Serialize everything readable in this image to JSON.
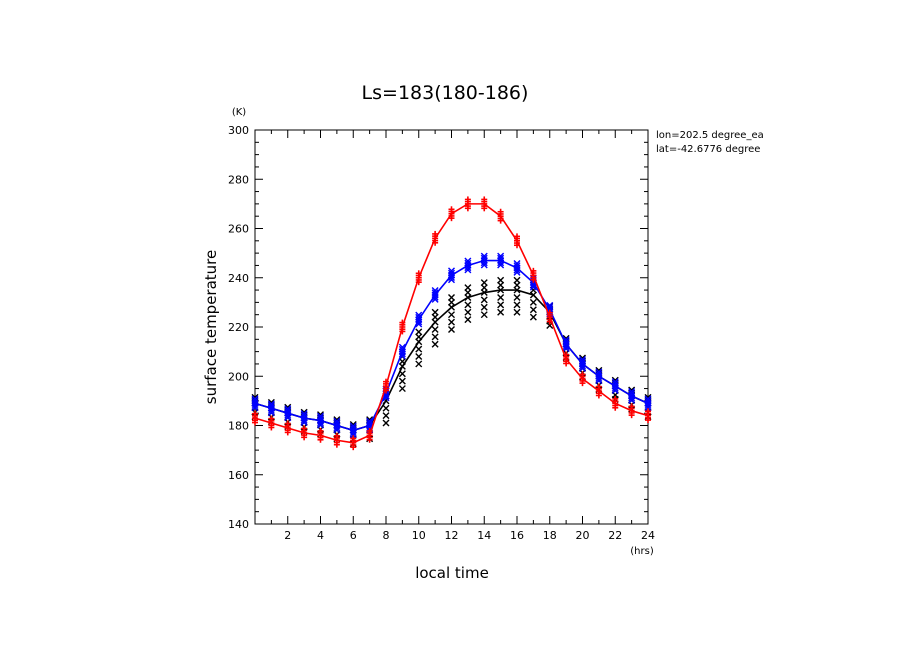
{
  "chart_data": {
    "type": "line",
    "title": "Ls=183(180-186)",
    "xlabel": "local time",
    "ylabel": "surface temperature",
    "x_unit": "(hrs)",
    "y_unit": "(K)",
    "xlim": [
      0,
      24
    ],
    "ylim": [
      140,
      300
    ],
    "x_ticks": [
      2,
      4,
      6,
      8,
      10,
      12,
      14,
      16,
      18,
      20,
      22,
      24
    ],
    "y_ticks": [
      140,
      160,
      180,
      200,
      220,
      240,
      260,
      280,
      300
    ],
    "grid": false,
    "annotations": [
      "lon=202.5 degree_ea",
      "lat=-42.6776 degree"
    ],
    "x": [
      0,
      1,
      2,
      3,
      4,
      5,
      6,
      7,
      8,
      9,
      10,
      11,
      12,
      13,
      14,
      15,
      16,
      17,
      18,
      19,
      20,
      21,
      22,
      23,
      24
    ],
    "series": [
      {
        "name": "red",
        "color": "#ff0000",
        "marker": "+",
        "values": [
          183,
          181,
          179,
          177,
          176,
          174,
          173,
          176,
          196,
          220,
          240,
          256,
          266,
          270,
          270,
          265,
          255,
          241,
          224,
          207,
          199,
          194,
          189,
          186,
          184
        ]
      },
      {
        "name": "blue",
        "color": "#0000ff",
        "marker": "x",
        "values": [
          189,
          187,
          185,
          183,
          182,
          180,
          178,
          180,
          193,
          210,
          223,
          233,
          241,
          245,
          247,
          247,
          244,
          238,
          227,
          213,
          205,
          200,
          196,
          192,
          189
        ]
      },
      {
        "name": "black",
        "color": "#000000",
        "marker": "x",
        "values": [
          189,
          187,
          185,
          183,
          182,
          180,
          178,
          180,
          190,
          204,
          214,
          222,
          228,
          232,
          234,
          235,
          235,
          233,
          226,
          213,
          205,
          200,
          196,
          192,
          189
        ]
      }
    ]
  }
}
